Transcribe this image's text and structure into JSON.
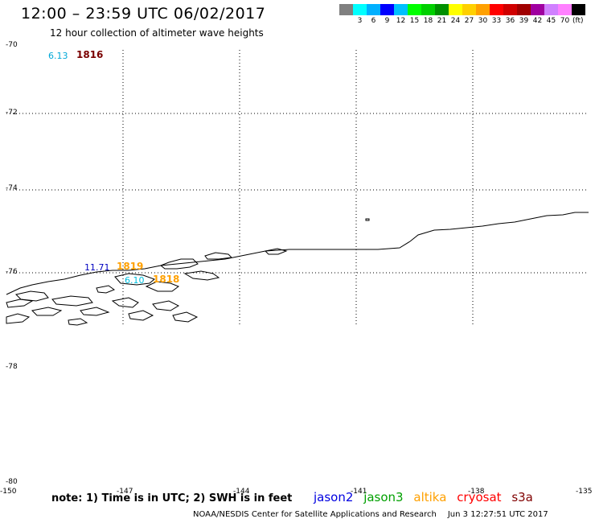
{
  "title": "12:00 – 23:59 UTC 06/02/2017",
  "subtitle": "12 hour collection of altimeter wave heights",
  "legend": {
    "colors": [
      "#808080",
      "#00ffff",
      "#00b0ff",
      "#0000ff",
      "#00c0ff",
      "#00ff00",
      "#00d000",
      "#009000",
      "#ffff00",
      "#ffd000",
      "#ffa000",
      "#ff0000",
      "#d00000",
      "#a00000",
      "#a000a0",
      "#d080ff",
      "#ff80ff",
      "#000000"
    ],
    "labels": [
      "3",
      "6",
      "9",
      "12",
      "15",
      "18",
      "21",
      "24",
      "27",
      "30",
      "33",
      "36",
      "39",
      "42",
      "45",
      "70"
    ],
    "unit": "(ft)"
  },
  "lat_labels": [
    "-70",
    "-72",
    "-74",
    "-76",
    "-78",
    "-80"
  ],
  "lon_labels": [
    "-150",
    "-147",
    "-144",
    "-141",
    "-138",
    "-135"
  ],
  "observations": [
    {
      "text": "6.13",
      "color": "#00a8d8"
    },
    {
      "text": "1816",
      "color": "#7a0000"
    },
    {
      "text": "11.71",
      "color": "#0000c0"
    },
    {
      "text": "1819",
      "color": "#ffa000"
    },
    {
      "text": "6.10",
      "color": "#00c0e0"
    },
    {
      "text": "1818",
      "color": "#ffa000"
    }
  ],
  "footer": {
    "note": "note: 1) Time is in UTC; 2) SWH is in feet",
    "satellites": [
      {
        "name": "jason2",
        "color": "#0000e0"
      },
      {
        "name": "jason3",
        "color": "#00a000"
      },
      {
        "name": "altika",
        "color": "#ffa000"
      },
      {
        "name": "cryosat",
        "color": "#ff0000"
      },
      {
        "name": "s3a",
        "color": "#800000"
      }
    ],
    "credit": "NOAA/NESDIS Center for Satellite Applications and Research",
    "timestamp": "Jun  3 12:27:51 UTC 2017"
  }
}
